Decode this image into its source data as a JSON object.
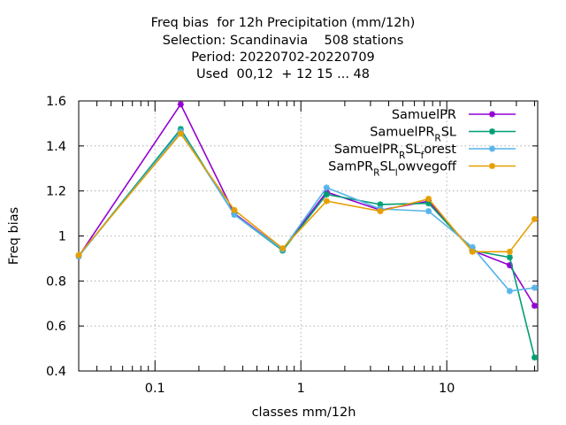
{
  "chart_data": {
    "type": "line",
    "title_lines": [
      "Freq bias  for 12h Precipitation (mm/12h)",
      "Selection: Scandinavia    508 stations",
      "Period: 20220702-20220709",
      "Used  00,12  + 12 15 ... 48"
    ],
    "xlabel": "classes mm/12h",
    "ylabel": "Freq bias",
    "x_scale": "log",
    "xlim": [
      0.03,
      42
    ],
    "ylim": [
      0.4,
      1.6
    ],
    "y_ticks": [
      "0.4",
      "0.6",
      "0.8",
      "1",
      "1.2",
      "1.4",
      "1.6"
    ],
    "x_ticks": [
      "0.1",
      "1",
      "10"
    ],
    "grid": true,
    "legend_position": "top-right",
    "x": [
      0.03,
      0.15,
      0.35,
      0.75,
      1.5,
      3.5,
      7.5,
      15,
      27,
      40
    ],
    "series": [
      {
        "name": "SamuelPR",
        "legend_parts": [
          [
            "SamuelPR",
            ""
          ]
        ],
        "color": "#9400d3",
        "values": [
          0.91,
          1.585,
          1.1,
          0.94,
          1.195,
          1.115,
          1.155,
          0.935,
          0.87,
          0.69
        ]
      },
      {
        "name": "SamuelPR_RSL",
        "legend_parts": [
          [
            "SamuelPR",
            ""
          ],
          [
            "R",
            "sub"
          ],
          [
            "SL",
            ""
          ]
        ],
        "color": "#009e73",
        "values": [
          0.91,
          1.475,
          1.095,
          0.935,
          1.185,
          1.14,
          1.145,
          0.935,
          0.905,
          0.46
        ]
      },
      {
        "name": "SamuelPR_RSL_forest",
        "legend_parts": [
          [
            "SamuelPR",
            ""
          ],
          [
            "R",
            "sub"
          ],
          [
            "SL",
            ""
          ],
          [
            "f",
            "sub"
          ],
          [
            "orest",
            ""
          ]
        ],
        "color": "#56b4e9",
        "values": [
          0.91,
          1.465,
          1.095,
          0.94,
          1.215,
          1.12,
          1.11,
          0.95,
          0.755,
          0.77
        ]
      },
      {
        "name": "SamPR_RSL_lowvegoff",
        "legend_parts": [
          [
            "SamPR",
            ""
          ],
          [
            "R",
            "sub"
          ],
          [
            "SL",
            ""
          ],
          [
            "l",
            "sub"
          ],
          [
            "owvegoff",
            ""
          ]
        ],
        "color": "#e69f00",
        "values": [
          0.915,
          1.455,
          1.115,
          0.945,
          1.155,
          1.11,
          1.165,
          0.93,
          0.93,
          1.075
        ]
      }
    ]
  }
}
